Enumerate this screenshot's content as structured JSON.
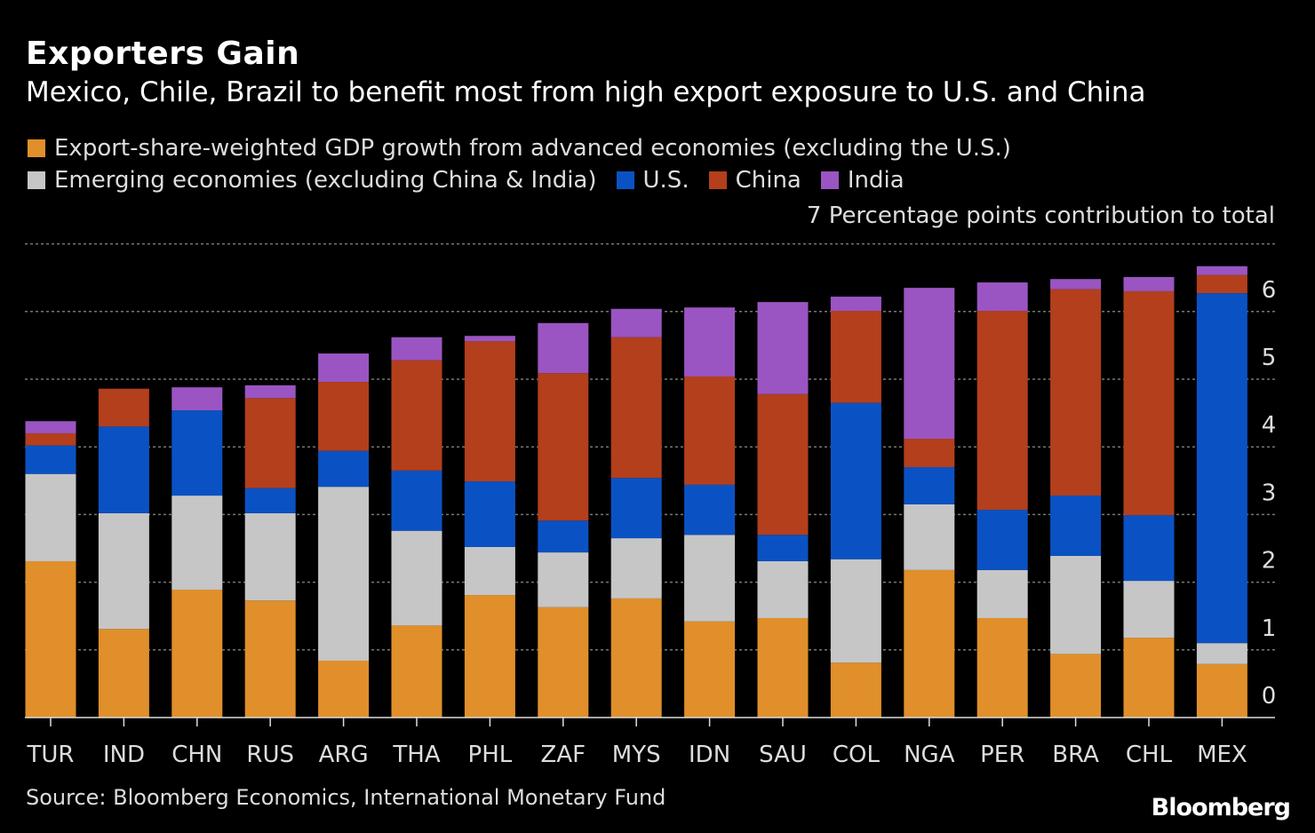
{
  "title": "Exporters Gain",
  "subtitle": "Mexico, Chile, Brazil to benefit most from high export exposure to U.S. and China",
  "unit_label": "Percentage points contribution to total",
  "source": "Source: Bloomberg Economics, International Monetary Fund",
  "logo": "Bloomberg",
  "chart_data": {
    "type": "bar",
    "stacked": true,
    "categories": [
      "TUR",
      "IND",
      "CHN",
      "RUS",
      "ARG",
      "THA",
      "PHL",
      "ZAF",
      "MYS",
      "IDN",
      "SAU",
      "COL",
      "NGA",
      "PER",
      "BRA",
      "CHL",
      "MEX"
    ],
    "ylim": [
      0,
      7
    ],
    "yticks": [
      0,
      1,
      2,
      3,
      4,
      5,
      6,
      7
    ],
    "ylabel": "Percentage points contribution to total",
    "grid": true,
    "legend_position": "top-left",
    "series": [
      {
        "name": "Export-share-weighted GDP growth from advanced economies (excluding the U.S.)",
        "color": "#e08f2b",
        "values": [
          2.31,
          1.31,
          1.89,
          1.73,
          0.84,
          1.36,
          1.81,
          1.63,
          1.76,
          1.42,
          1.47,
          0.81,
          2.18,
          1.47,
          0.94,
          1.18,
          0.79
        ]
      },
      {
        "name": "Emerging economies (excluding China & India)",
        "color": "#c6c6c6",
        "values": [
          1.29,
          1.71,
          1.39,
          1.29,
          2.57,
          1.4,
          0.71,
          0.81,
          0.89,
          1.28,
          0.84,
          1.53,
          0.97,
          0.71,
          1.45,
          0.84,
          0.31
        ]
      },
      {
        "name": "U.S.",
        "color": "#0a52c4",
        "values": [
          0.42,
          1.28,
          1.26,
          0.37,
          0.53,
          0.89,
          0.97,
          0.47,
          0.89,
          0.74,
          0.39,
          2.31,
          0.55,
          0.89,
          0.89,
          0.97,
          5.17
        ]
      },
      {
        "name": "China",
        "color": "#b33f1c",
        "values": [
          0.18,
          0.56,
          0.0,
          1.33,
          1.02,
          1.63,
          2.07,
          2.18,
          2.08,
          1.6,
          2.08,
          1.36,
          0.42,
          2.94,
          3.05,
          3.31,
          0.27
        ]
      },
      {
        "name": "India",
        "color": "#9a55c2",
        "values": [
          0.18,
          0.0,
          0.34,
          0.19,
          0.42,
          0.34,
          0.08,
          0.74,
          0.42,
          1.02,
          1.36,
          0.21,
          2.23,
          0.42,
          0.15,
          0.21,
          0.13
        ]
      }
    ]
  }
}
